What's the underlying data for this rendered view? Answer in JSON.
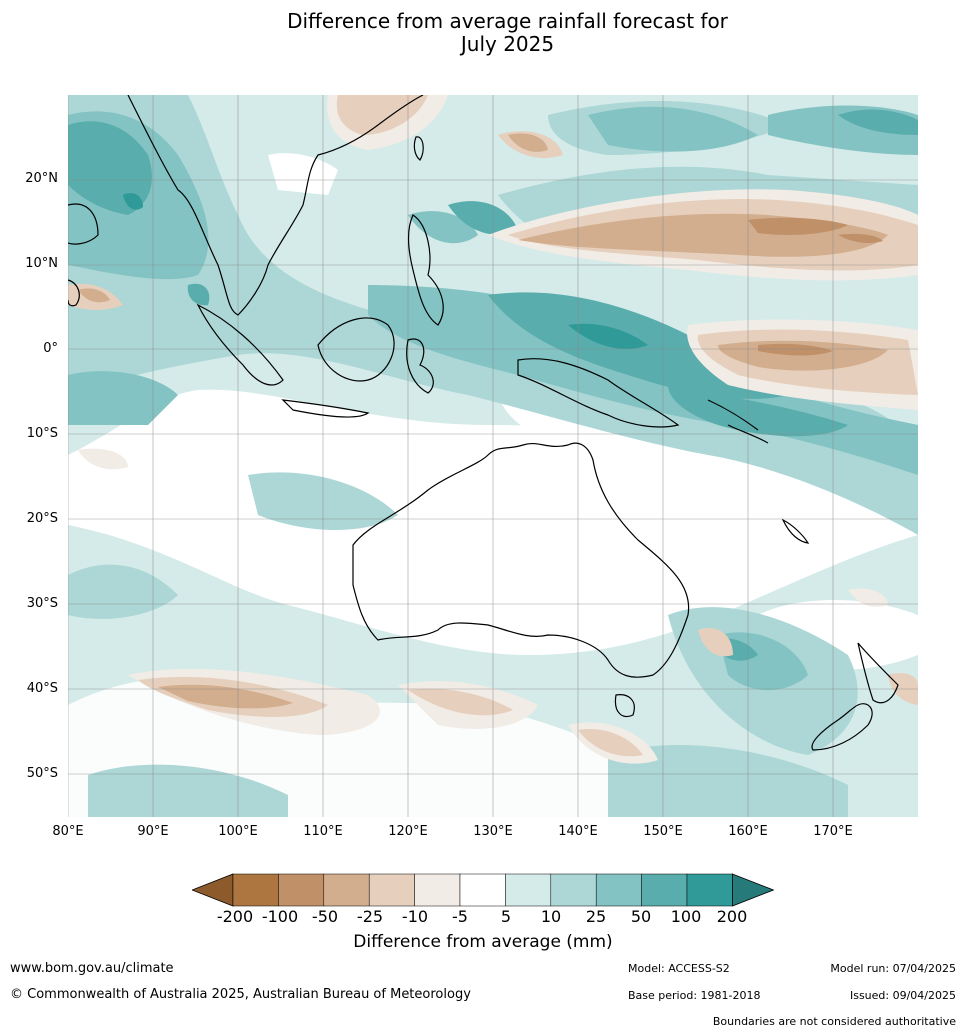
{
  "title": {
    "line1": "Difference from average rainfall forecast for",
    "line2": "July 2025"
  },
  "map": {
    "lat_labels": [
      "20°N",
      "10°N",
      "0°",
      "10°S",
      "20°S",
      "30°S",
      "40°S",
      "50°S"
    ],
    "lon_labels": [
      "80°E",
      "90°E",
      "100°E",
      "110°E",
      "120°E",
      "130°E",
      "140°E",
      "150°E",
      "160°E",
      "170°E"
    ],
    "extent": {
      "lon": [
        80,
        180
      ],
      "lat": [
        -55,
        30
      ]
    }
  },
  "colorbar": {
    "title": "Difference from average (mm)",
    "ticks": [
      "-200",
      "-100",
      "-50",
      "-25",
      "-10",
      "-5",
      "5",
      "10",
      "25",
      "50",
      "100",
      "200"
    ],
    "colors": [
      "#8c5a2b",
      "#ad7540",
      "#c09068",
      "#d2ae8e",
      "#e6d0bd",
      "#f2ece6",
      "#ffffff",
      "#d4ebe9",
      "#acd7d6",
      "#83c3c3",
      "#5aadad",
      "#2f9a98",
      "#267b7a"
    ]
  },
  "footer": {
    "website": "www.bom.gov.au/climate",
    "copyright": "© Commonwealth of Australia 2025, Australian Bureau of Meteorology",
    "model": "Model: ACCESS-S2",
    "base_period": "Base period: 1981-2018",
    "model_run": "Model run: 07/04/2025",
    "issued": "Issued: 09/04/2025",
    "disclaimer": "Boundaries are not considered authoritative"
  }
}
